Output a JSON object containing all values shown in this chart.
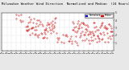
{
  "title": "Milwaukee Weather Wind Direction  Normalized and Median  (24 Hours) (New)",
  "title_fontsize": 2.8,
  "background_color": "#e8e8e8",
  "plot_bg_color": "#ffffff",
  "grid_color": "#aaaaaa",
  "ylim": [
    0,
    5
  ],
  "ytick_right": true,
  "yticks": [
    1,
    2,
    3,
    4,
    5
  ],
  "legend_labels": [
    "Normalized",
    "Median"
  ],
  "legend_colors": [
    "#0000cc",
    "#cc0000"
  ],
  "scatter_color_norm": "#cc0000",
  "scatter_color_med": "#cc0000",
  "line_color": "#cc0000",
  "num_points": 288,
  "seed": 7
}
